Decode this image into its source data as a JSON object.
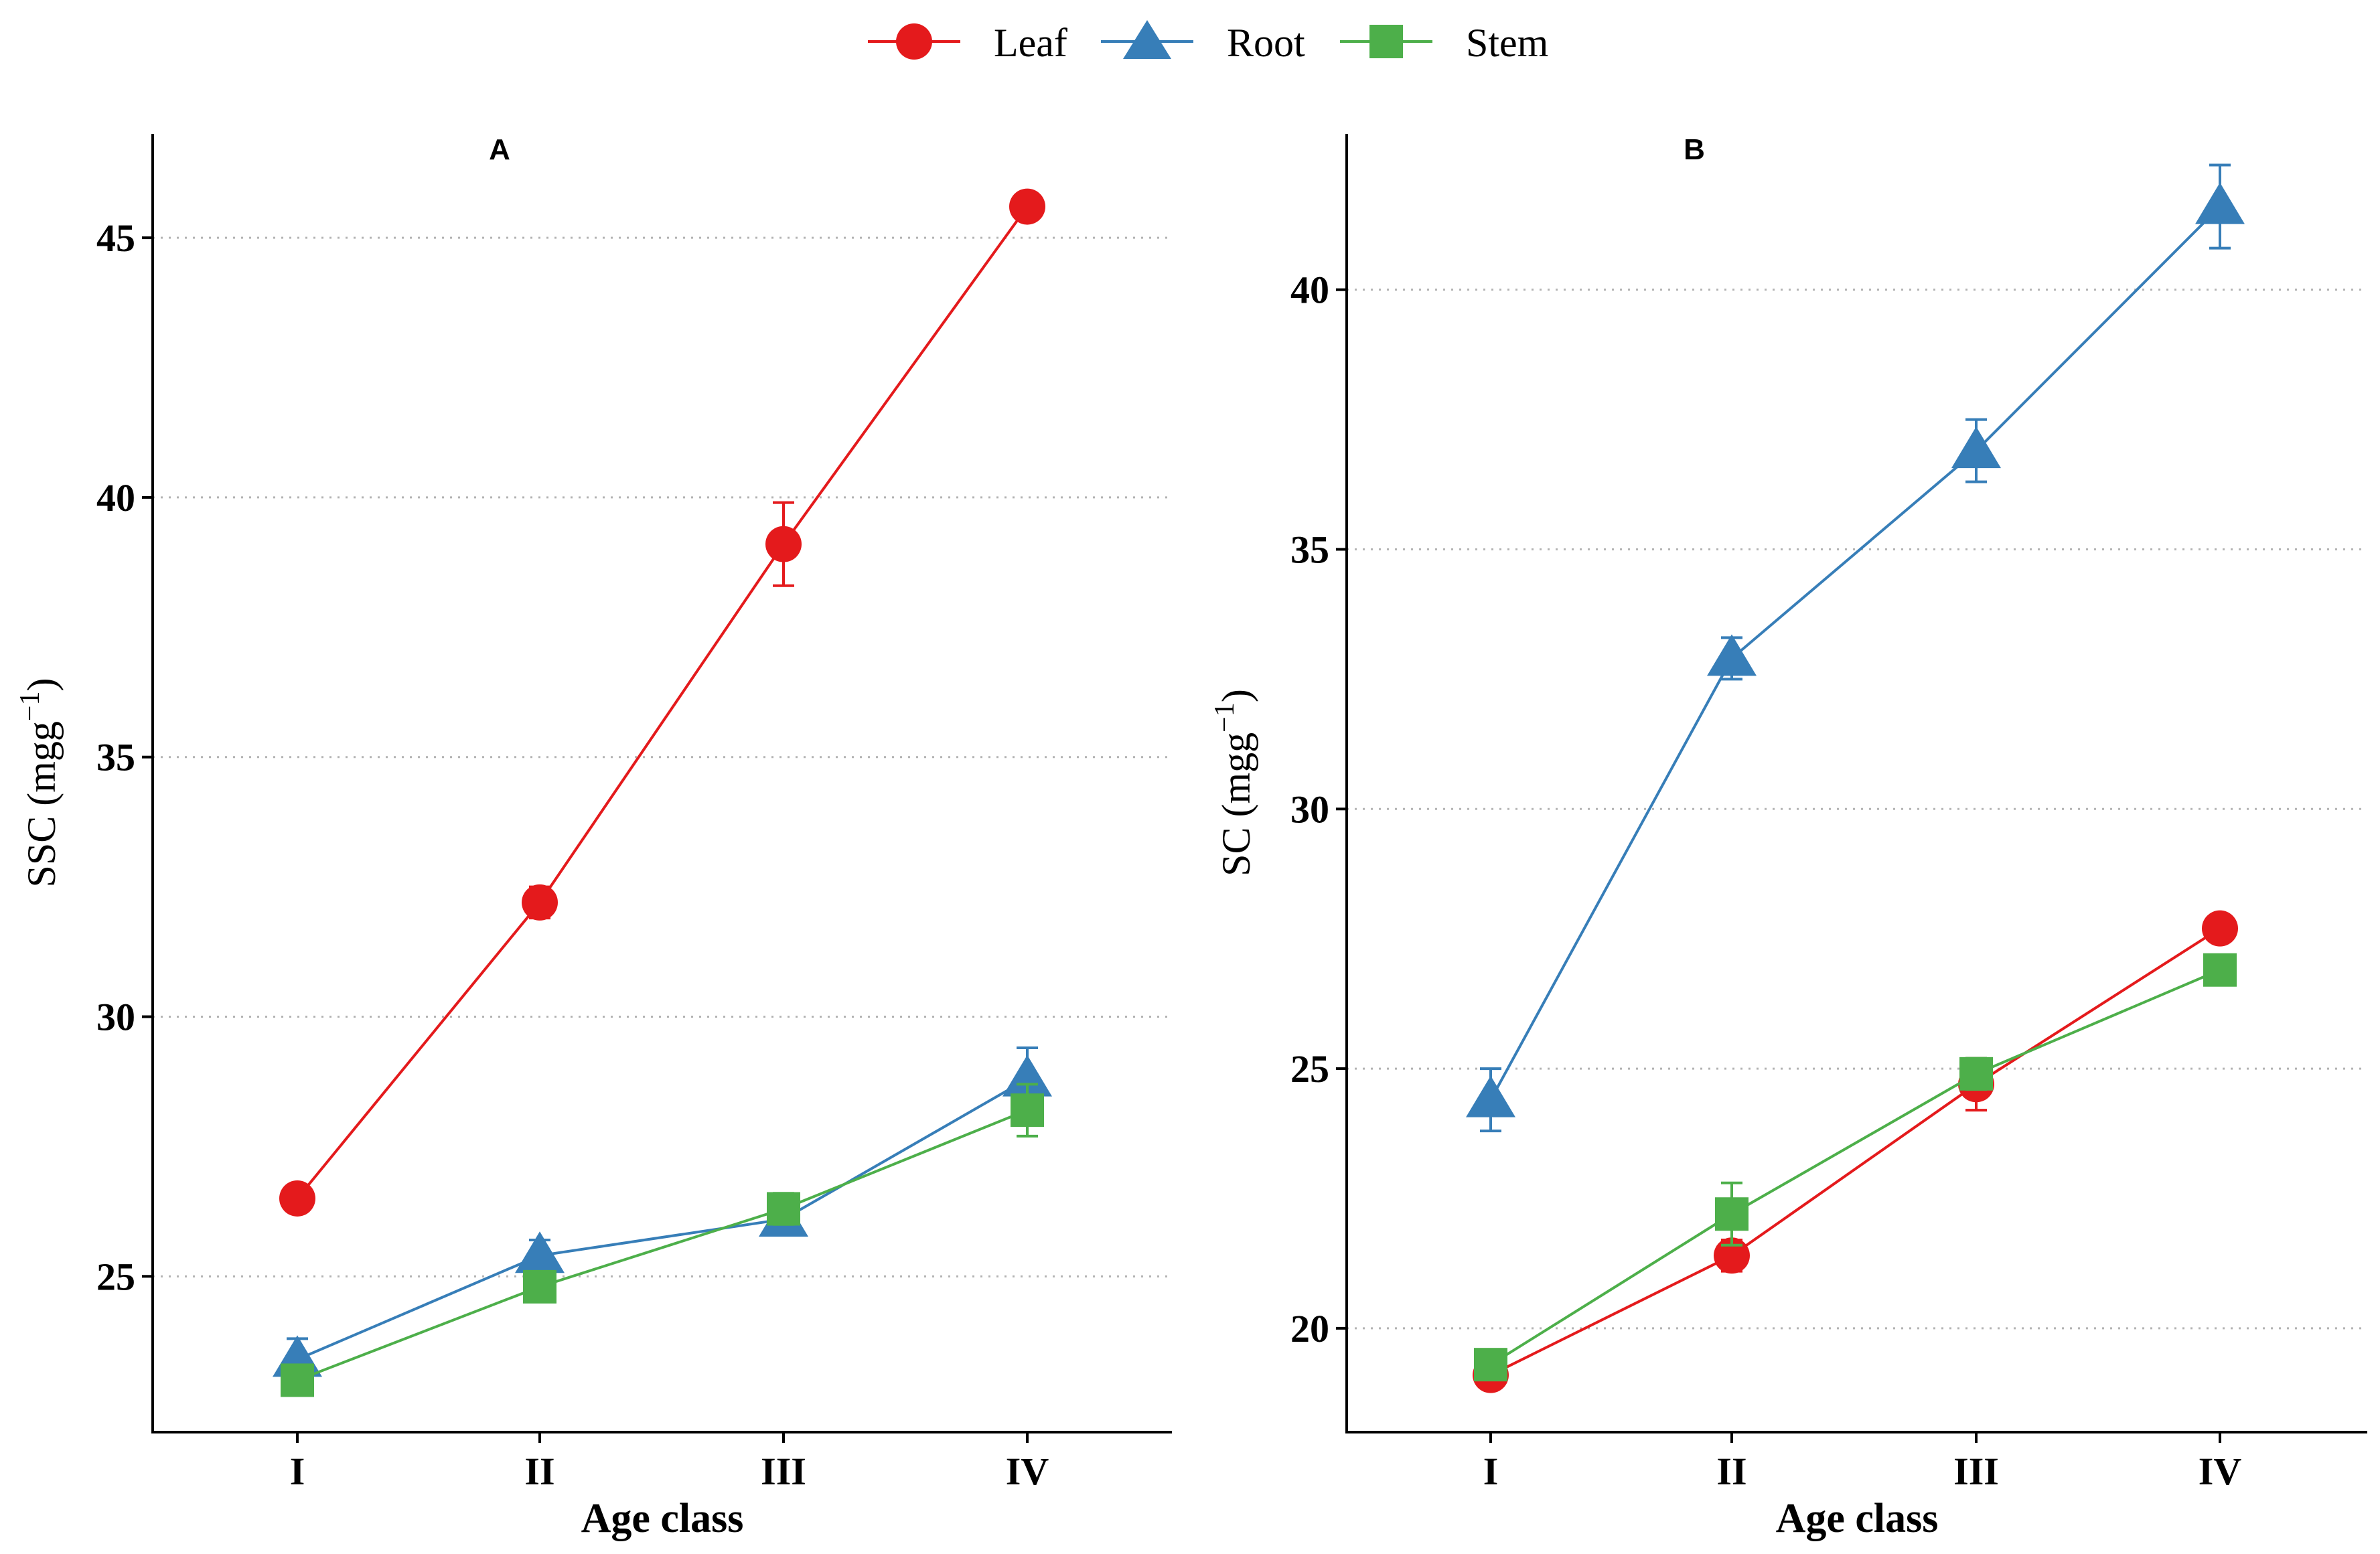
{
  "legend": [
    {
      "name": "Leaf",
      "color": "#E41A1C",
      "marker": "circle"
    },
    {
      "name": "Root",
      "color": "#377EB8",
      "marker": "triangle"
    },
    {
      "name": "Stem",
      "color": "#4DAF4A",
      "marker": "square"
    }
  ],
  "chart_data": [
    {
      "type": "line",
      "panel": "A",
      "title": "",
      "xlabel": "Age class",
      "ylabel": "SSC (mgg",
      "ylabel_sup": "−1",
      "ylabel_close": ")",
      "categories": [
        "I",
        "II",
        "III",
        "IV"
      ],
      "ylim": [
        22,
        47
      ],
      "yticks": [
        25,
        30,
        35,
        40,
        45
      ],
      "grid": "horizontal-dotted",
      "series": [
        {
          "name": "Leaf",
          "values": [
            26.5,
            32.2,
            39.1,
            45.6
          ],
          "errors": [
            0.2,
            0.3,
            0.8,
            0.2
          ]
        },
        {
          "name": "Root",
          "values": [
            23.4,
            25.4,
            26.1,
            28.8
          ],
          "errors": [
            0.4,
            0.3,
            0.3,
            0.6
          ]
        },
        {
          "name": "Stem",
          "values": [
            23.0,
            24.8,
            26.3,
            28.2
          ],
          "errors": [
            0.2,
            0.2,
            0.3,
            0.5
          ]
        }
      ]
    },
    {
      "type": "line",
      "panel": "B",
      "title": "",
      "xlabel": "Age class",
      "ylabel": "SC (mgg",
      "ylabel_sup": "−1",
      "ylabel_close": ")",
      "categories": [
        "I",
        "II",
        "III",
        "IV"
      ],
      "ylim": [
        18,
        43
      ],
      "yticks": [
        20,
        25,
        30,
        35,
        40
      ],
      "grid": "horizontal-dotted",
      "series": [
        {
          "name": "Leaf",
          "values": [
            19.1,
            21.4,
            24.7,
            27.7
          ],
          "errors": [
            0.2,
            0.3,
            0.5,
            0.2
          ]
        },
        {
          "name": "Root",
          "values": [
            24.4,
            32.9,
            36.9,
            41.6
          ],
          "errors": [
            0.6,
            0.4,
            0.6,
            0.8
          ]
        },
        {
          "name": "Stem",
          "values": [
            19.3,
            22.2,
            24.9,
            26.9
          ],
          "errors": [
            0.2,
            0.6,
            0.3,
            0.2
          ]
        }
      ]
    }
  ]
}
